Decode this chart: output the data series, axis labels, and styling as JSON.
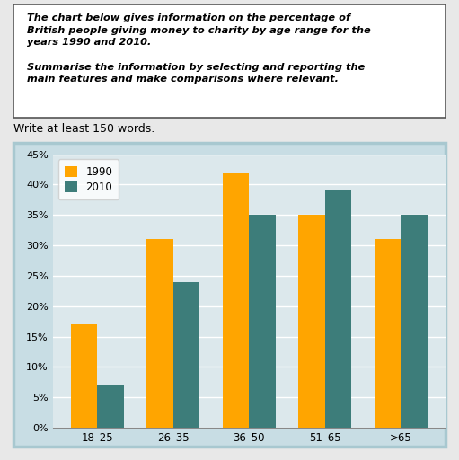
{
  "subtitle": "Write at least 150 words.",
  "categories": [
    "18–25",
    "26–35",
    "36–50",
    "51–65",
    ">65"
  ],
  "values_1990": [
    17,
    31,
    42,
    35,
    31
  ],
  "values_2010": [
    7,
    24,
    35,
    39,
    35
  ],
  "color_1990": "#FFA500",
  "color_2010": "#3D7D7A",
  "legend_labels": [
    "1990",
    "2010"
  ],
  "ylim": [
    0,
    45
  ],
  "yticks": [
    0,
    5,
    10,
    15,
    20,
    25,
    30,
    35,
    40,
    45
  ],
  "ytick_labels": [
    "0%",
    "5%",
    "10%",
    "15%",
    "20%",
    "25%",
    "30%",
    "35%",
    "40%",
    "45%"
  ],
  "bar_width": 0.35,
  "chart_border_color": "#A8C8D0",
  "chart_bg_color": "#C8DDE4",
  "plot_bg_color": "#DCE8EC",
  "grid_color": "#FFFFFF",
  "fig_bg_color": "#E8E8E8",
  "title_line1": "The chart below gives information on the percentage of",
  "title_line2": "British people giving money to charity by age range for the",
  "title_line3": "years 1990 and 2010.",
  "title_line4": "",
  "title_line5": "Summarise the information by selecting and reporting the",
  "title_line6": "main features and make comparisons where relevant."
}
